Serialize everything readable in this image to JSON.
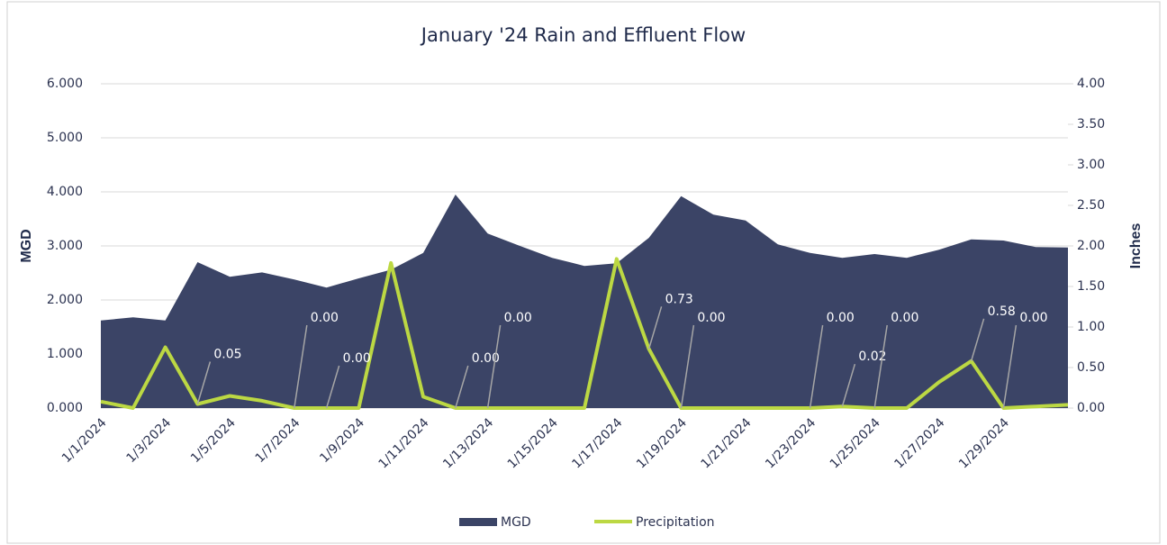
{
  "chart_data": {
    "type": "area-line",
    "title": "January '24 Rain and Effluent Flow",
    "ylabel": "MGD",
    "y2label": "Inches",
    "categories": [
      "1/1/2024",
      null,
      "1/3/2024",
      null,
      "1/5/2024",
      null,
      "1/7/2024",
      null,
      "1/9/2024",
      null,
      "1/11/2024",
      null,
      "1/13/2024",
      null,
      "1/15/2024",
      null,
      "1/17/2024",
      null,
      "1/19/2024",
      null,
      "1/21/2024",
      null,
      "1/23/2024",
      null,
      "1/25/2024",
      null,
      "1/27/2024",
      null,
      "1/29/2024",
      null,
      null
    ],
    "series": [
      {
        "name": "MGD",
        "color": "#3b4466",
        "kind": "area",
        "values": [
          1.62,
          1.68,
          1.62,
          2.7,
          2.43,
          2.51,
          2.38,
          2.23,
          2.4,
          2.56,
          2.87,
          3.95,
          3.23,
          3.0,
          2.78,
          2.63,
          2.68,
          3.15,
          3.92,
          3.58,
          3.47,
          3.03,
          2.87,
          2.78,
          2.85,
          2.78,
          2.93,
          3.12,
          3.1,
          2.98,
          2.97
        ]
      },
      {
        "name": "Precipitation",
        "color": "#bcd843",
        "kind": "line",
        "axis": "y2",
        "values": [
          0.08,
          0,
          0.75,
          0.05,
          0.15,
          0.09,
          0,
          0,
          0,
          1.79,
          0.14,
          0,
          0,
          0,
          0,
          0,
          1.84,
          0.73,
          0,
          0,
          0,
          0,
          0,
          0.02,
          0,
          0,
          0.32,
          0.58,
          0,
          0.02,
          0.04
        ],
        "value_labels": [
          null,
          null,
          null,
          "0.05",
          null,
          null,
          "0.00",
          "0.00",
          null,
          null,
          null,
          "0.00",
          "0.00",
          null,
          null,
          null,
          null,
          "0.73",
          "0.00",
          null,
          null,
          null,
          "0.00",
          "0.02",
          "0.00",
          null,
          null,
          "0.58",
          "0.00",
          null,
          null
        ]
      }
    ],
    "ylim": [
      0,
      6
    ],
    "yticks": [
      {
        "value": 0,
        "label": "0.000"
      },
      {
        "value": 1,
        "label": "1.000"
      },
      {
        "value": 2,
        "label": "2.000"
      },
      {
        "value": 3,
        "label": "3.000"
      },
      {
        "value": 4,
        "label": "4.000"
      },
      {
        "value": 5,
        "label": "5.000"
      },
      {
        "value": 6,
        "label": "6.000"
      }
    ],
    "y2lim": [
      0,
      4
    ],
    "y2ticks": [
      {
        "value": 0,
        "label": "0.00"
      },
      {
        "value": 0.5,
        "label": "0.50"
      },
      {
        "value": 1,
        "label": "1.00"
      },
      {
        "value": 1.5,
        "label": "1.50"
      },
      {
        "value": 2,
        "label": "2.00"
      },
      {
        "value": 2.5,
        "label": "2.50"
      },
      {
        "value": 3,
        "label": "3.00"
      },
      {
        "value": 3.5,
        "label": "3.50"
      },
      {
        "value": 4,
        "label": "4.00"
      }
    ],
    "grid": true,
    "legend": "bottom"
  }
}
